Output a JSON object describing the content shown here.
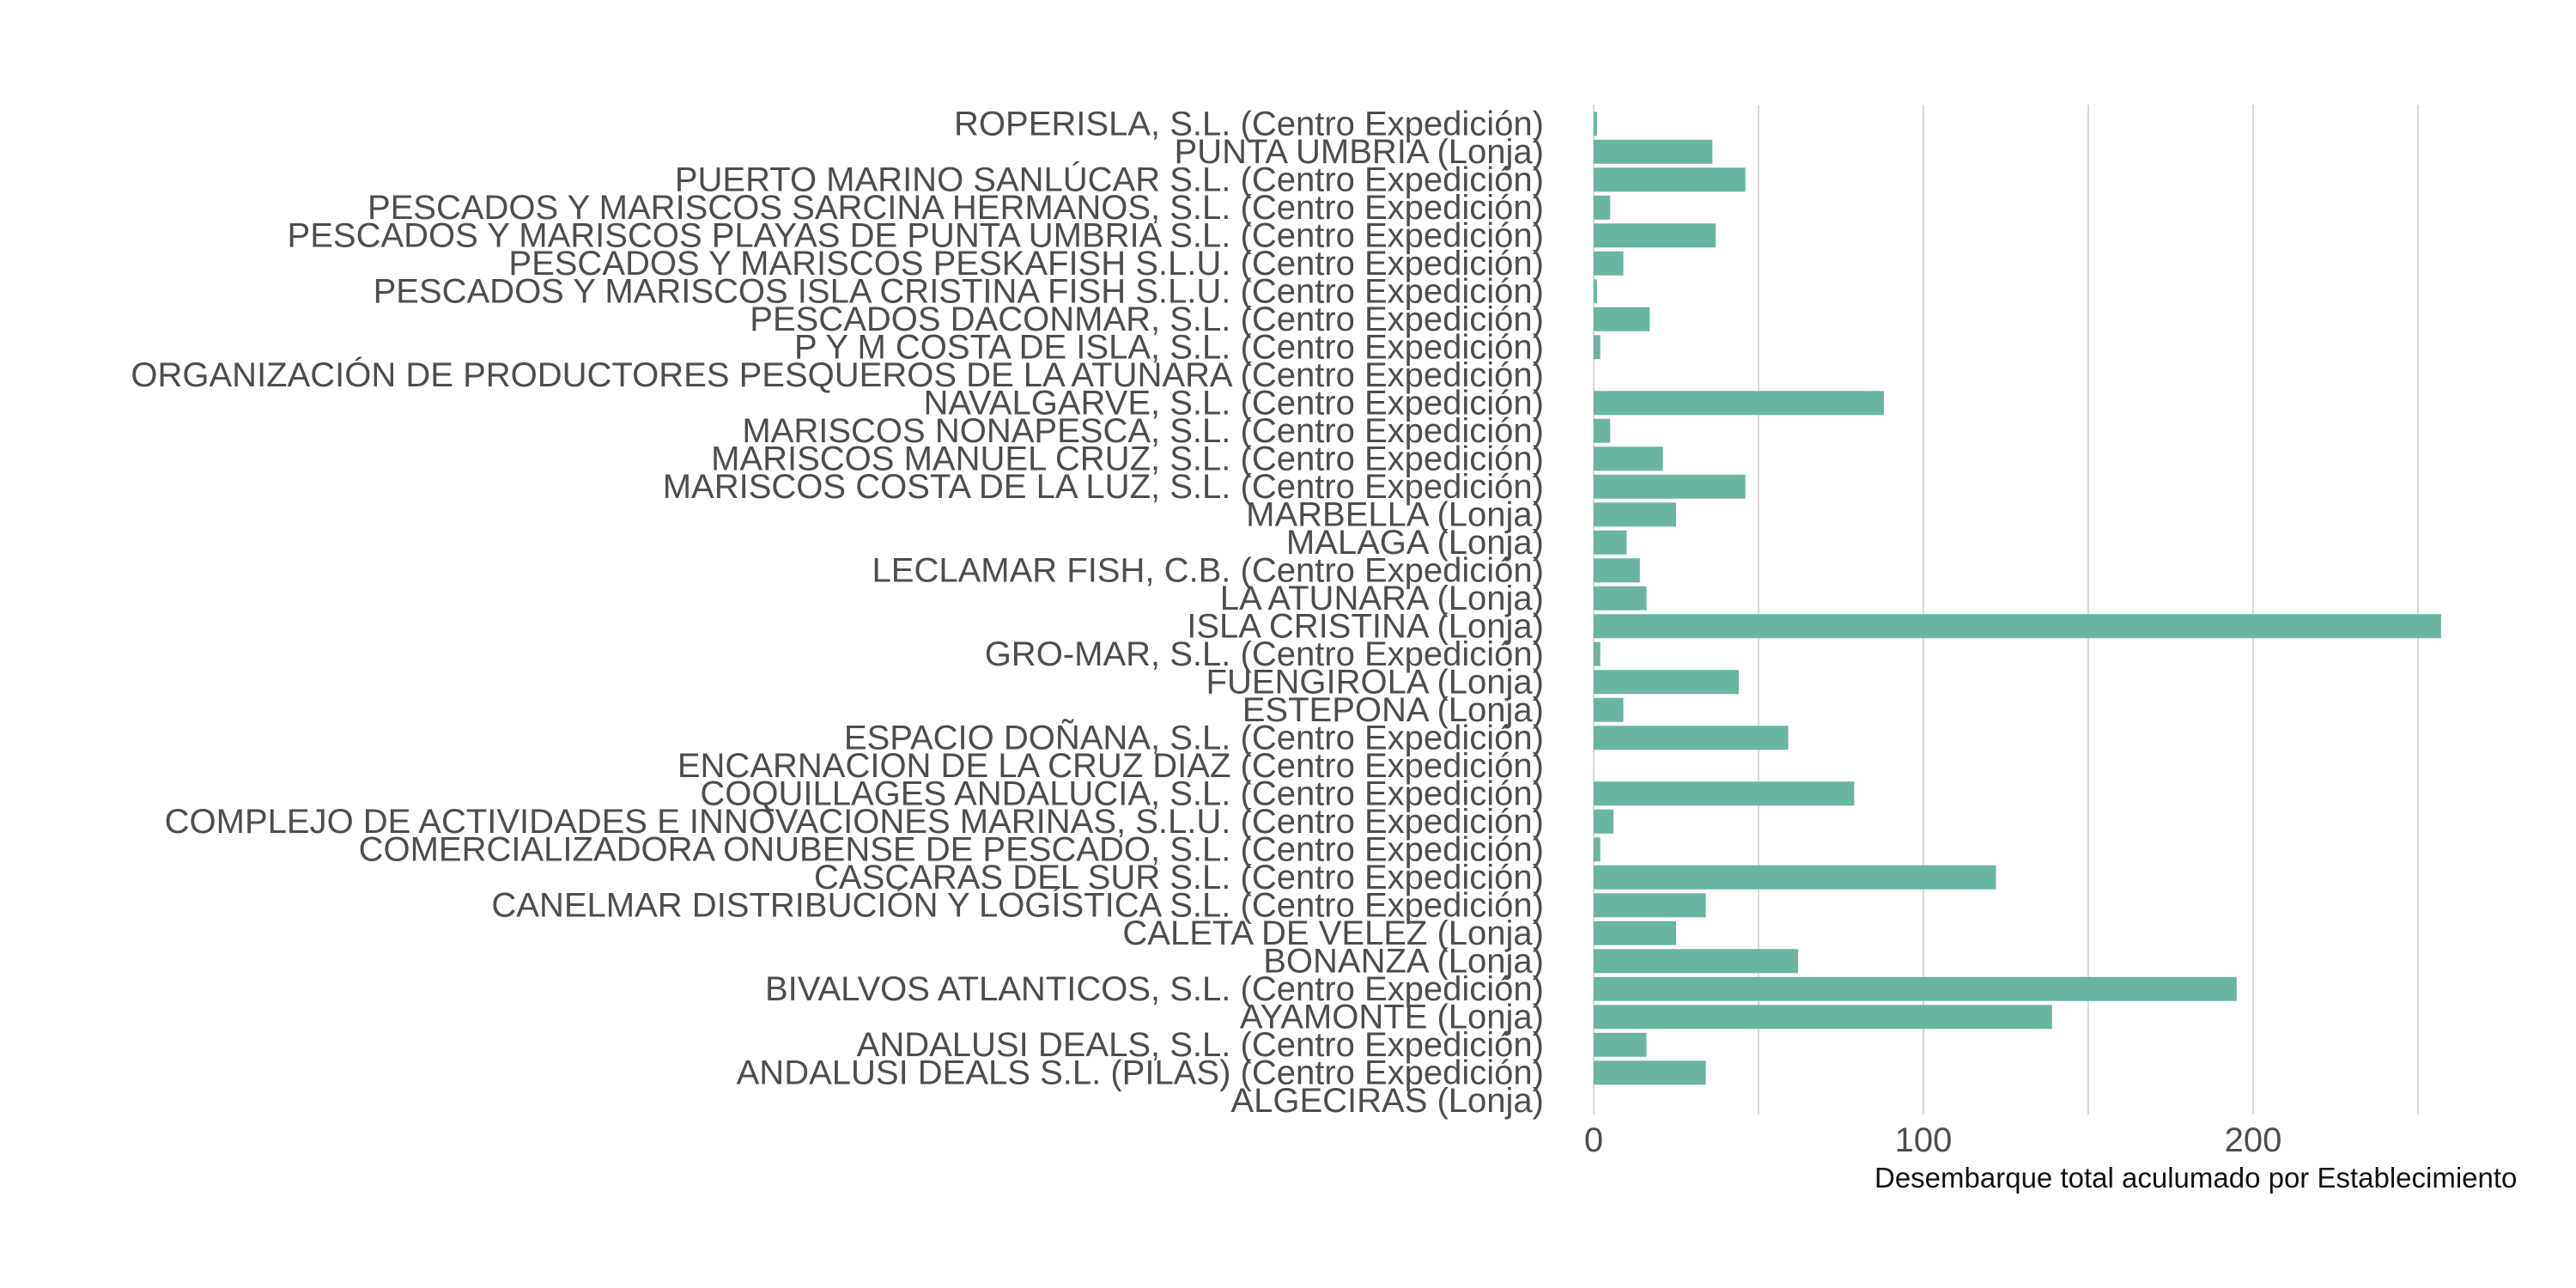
{
  "chart_data": {
    "type": "bar",
    "orientation": "horizontal",
    "title": "",
    "xlabel": "Desembarque total aculumado por Establecimiento",
    "ylabel": "",
    "xlim": [
      0,
      262
    ],
    "xticks": [
      0,
      100,
      200
    ],
    "grid": true,
    "bar_color": "#6ab5a1",
    "categories": [
      "ROPERISLA, S.L. (Centro Expedición)",
      "PUNTA UMBRIA (Lonja)",
      "PUERTO MARINO SANLÚCAR S.L. (Centro Expedición)",
      "PESCADOS Y MARISCOS SARCINA HERMANOS, S.L. (Centro Expedición)",
      "PESCADOS Y MARISCOS PLAYAS DE PUNTA UMBRIA S.L. (Centro Expedición)",
      "PESCADOS Y MARISCOS PESKAFISH S.L.U. (Centro Expedición)",
      "PESCADOS Y MARISCOS ISLA CRISTINA FISH S.L.U. (Centro Expedición)",
      "PESCADOS DACONMAR, S.L. (Centro Expedición)",
      "P Y M COSTA DE ISLA, S.L. (Centro Expedición)",
      "ORGANIZACIÓN DE PRODUCTORES PESQUEROS DE LA ATUNARA (Centro Expedición)",
      "NAVALGARVE, S.L. (Centro Expedición)",
      "MARISCOS NONAPESCA, S.L. (Centro Expedición)",
      "MARISCOS MANUEL CRUZ, S.L. (Centro Expedición)",
      "MARISCOS COSTA DE LA LUZ, S.L. (Centro Expedición)",
      "MARBELLA (Lonja)",
      "MALAGA (Lonja)",
      "LECLAMAR FISH, C.B. (Centro Expedición)",
      "LA ATUNARA (Lonja)",
      "ISLA CRISTINA (Lonja)",
      "GRO-MAR, S.L. (Centro Expedición)",
      "FUENGIROLA (Lonja)",
      "ESTEPONA (Lonja)",
      "ESPACIO DOÑANA, S.L. (Centro Expedición)",
      "ENCARNACION DE LA CRUZ DIAZ (Centro Expedición)",
      "COQUILLAGES ANDALUCIA, S.L. (Centro Expedición)",
      "COMPLEJO DE ACTIVIDADES E INNOVACIONES MARINAS, S.L.U. (Centro Expedición)",
      "COMERCIALIZADORA ONUBENSE DE PESCADO, S.L. (Centro Expedición)",
      "CASCARAS DEL SUR S.L. (Centro Expedición)",
      "CANELMAR DISTRIBUCIÓN Y LOGÍSTICA S.L. (Centro Expedición)",
      "CALETA DE VELEZ (Lonja)",
      "BONANZA (Lonja)",
      "BIVALVOS ATLANTICOS, S.L. (Centro Expedición)",
      "AYAMONTE (Lonja)",
      "ANDALUSI DEALS, S.L. (Centro Expedición)",
      "ANDALUSI DEALS S.L. (PILAS) (Centro Expedición)",
      "ALGECIRAS (Lonja)"
    ],
    "values": [
      1,
      36,
      46,
      5,
      37,
      9,
      1,
      17,
      2,
      0,
      88,
      5,
      21,
      46,
      25,
      10,
      14,
      16,
      257,
      2,
      44,
      9,
      59,
      0,
      79,
      6,
      2,
      122,
      34,
      25,
      62,
      195,
      139,
      16,
      34,
      0
    ]
  }
}
